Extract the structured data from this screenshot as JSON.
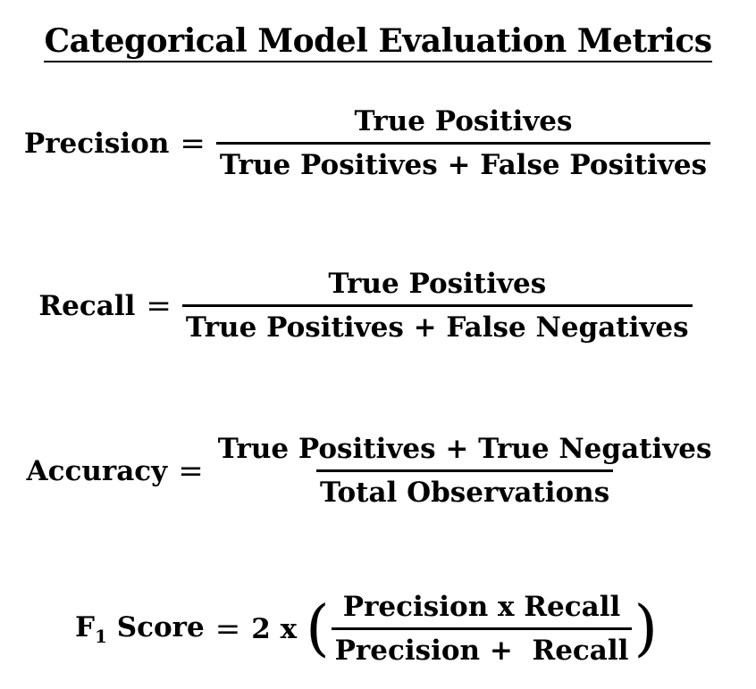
{
  "title": "Categorical Model Evaluation Metrics",
  "equals": "=",
  "formulas": {
    "precision": {
      "lhs": "Precision",
      "numerator": "True Positives",
      "denominator": "True Positives + False Positives"
    },
    "recall": {
      "lhs": "Recall",
      "numerator": "True Positives",
      "denominator": "True Positives + False Negatives"
    },
    "accuracy": {
      "lhs": "Accuracy",
      "numerator": "True Positives + True Negatives",
      "denominator": "Total Observations"
    },
    "f1": {
      "lhs_main": "F",
      "lhs_sub": "1",
      "lhs_rest": " Score",
      "coefficient": "2 x",
      "open_paren": "(",
      "close_paren": ")",
      "numerator": "Precision x Recall",
      "denominator": "Precision +  Recall"
    }
  }
}
